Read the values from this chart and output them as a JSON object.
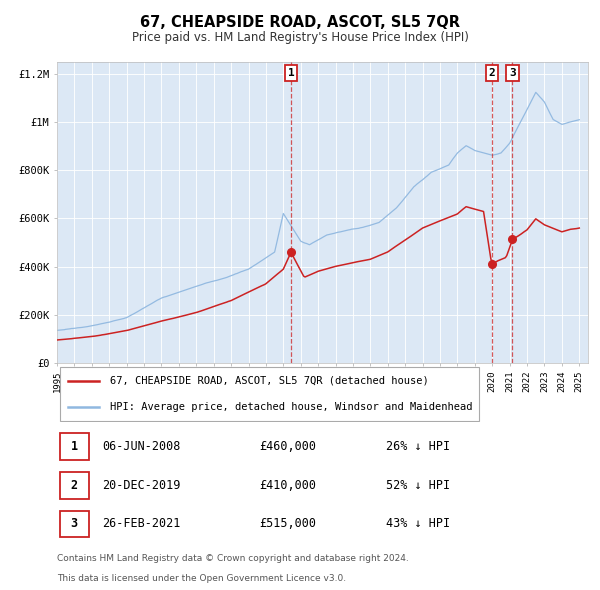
{
  "title": "67, CHEAPSIDE ROAD, ASCOT, SL5 7QR",
  "subtitle": "Price paid vs. HM Land Registry's House Price Index (HPI)",
  "plot_bg_color": "#dce8f5",
  "hpi_color": "#90b8e0",
  "price_color": "#cc2222",
  "ylim": [
    0,
    1250000
  ],
  "yticks": [
    0,
    200000,
    400000,
    600000,
    800000,
    1000000,
    1200000
  ],
  "ytick_labels": [
    "£0",
    "£200K",
    "£400K",
    "£600K",
    "£800K",
    "£1M",
    "£1.2M"
  ],
  "transactions": [
    {
      "date_num": 2008.44,
      "price": 460000,
      "label": "1"
    },
    {
      "date_num": 2019.97,
      "price": 410000,
      "label": "2"
    },
    {
      "date_num": 2021.16,
      "price": 515000,
      "label": "3"
    }
  ],
  "transaction_dates": [
    "06-JUN-2008",
    "20-DEC-2019",
    "26-FEB-2021"
  ],
  "transaction_prices": [
    "£460,000",
    "£410,000",
    "£515,000"
  ],
  "transaction_hpi_pcts": [
    "26% ↓ HPI",
    "52% ↓ HPI",
    "43% ↓ HPI"
  ],
  "legend_line1": "67, CHEAPSIDE ROAD, ASCOT, SL5 7QR (detached house)",
  "legend_line2": "HPI: Average price, detached house, Windsor and Maidenhead",
  "footer1": "Contains HM Land Registry data © Crown copyright and database right 2024.",
  "footer2": "This data is licensed under the Open Government Licence v3.0."
}
